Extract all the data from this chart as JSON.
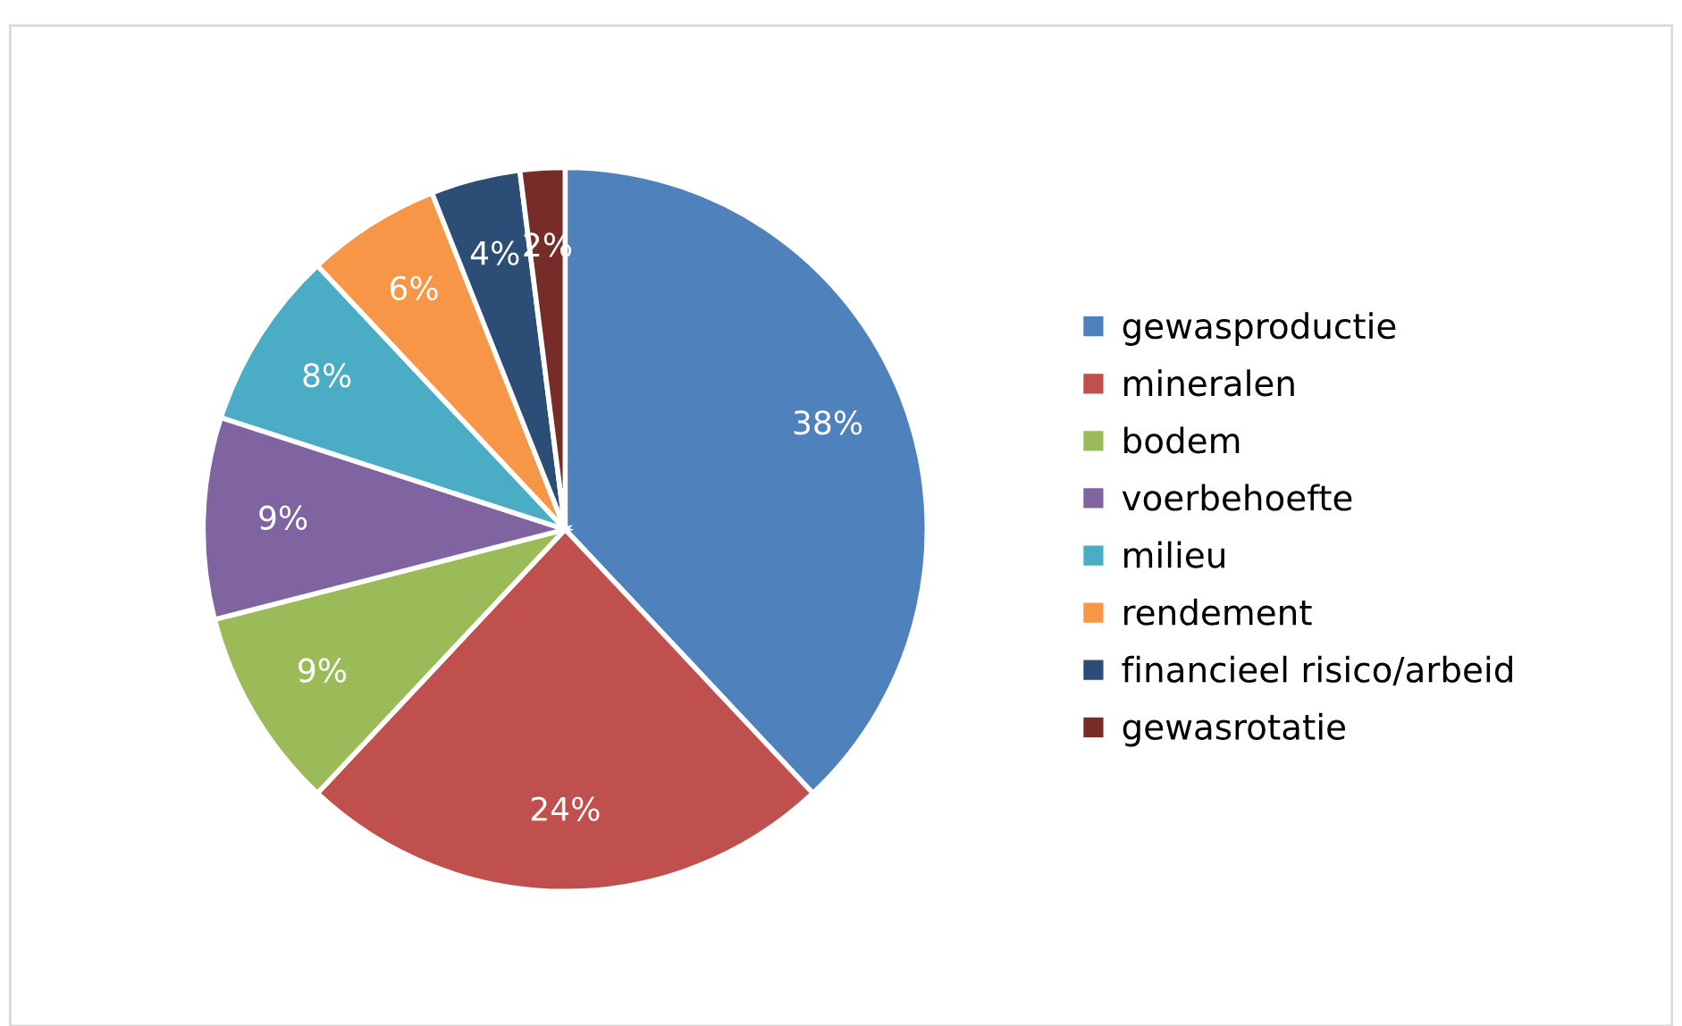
{
  "chart_data": {
    "type": "pie",
    "categories": [
      "gewasproductie",
      "mineralen",
      "bodem",
      "voerbehoefte",
      "milieu",
      "rendement",
      "financieel risico/arbeid",
      "gewasrotatie"
    ],
    "values": [
      38,
      24,
      9,
      9,
      8,
      6,
      4,
      2
    ],
    "colors": [
      "#4f81bd",
      "#c0504d",
      "#9bbb59",
      "#8064a2",
      "#4bacc6",
      "#f79646",
      "#2c4d75",
      "#772c2a"
    ],
    "value_labels": [
      "38%",
      "24%",
      "9%",
      "9%",
      "8%",
      "6%",
      "4%",
      "2%"
    ],
    "legend": "right"
  }
}
